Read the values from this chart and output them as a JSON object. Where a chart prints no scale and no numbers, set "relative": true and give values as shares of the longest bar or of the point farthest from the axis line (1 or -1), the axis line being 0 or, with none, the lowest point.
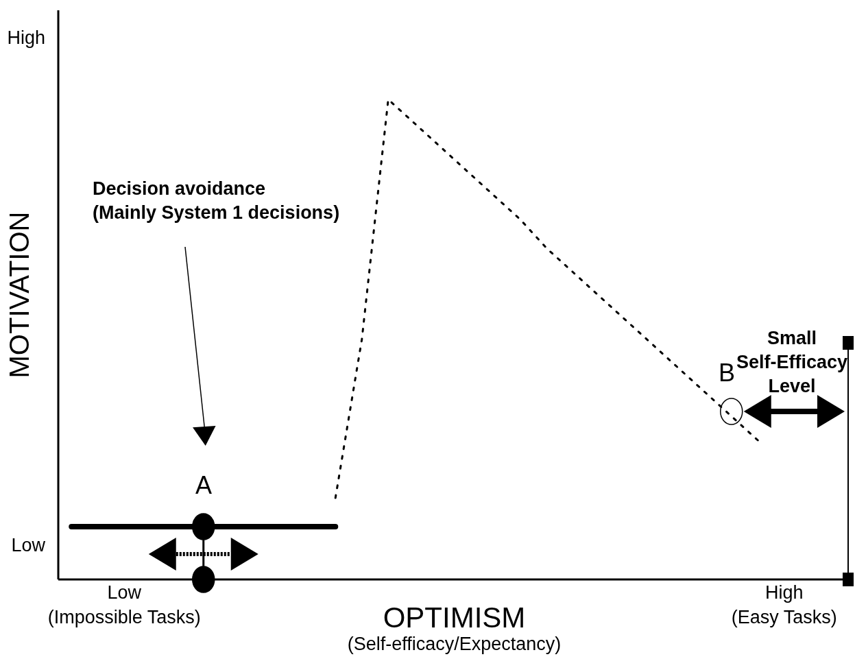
{
  "chart_data": {
    "type": "line",
    "relative": true,
    "xlabel": "OPTIMISM\n(Self-efficacy/Expectancy)",
    "ylabel": "MOTIVATION",
    "categories": [
      null,
      null,
      "Low\n(Impossible Tasks)",
      null,
      null,
      null,
      null,
      null,
      null,
      null,
      null,
      null,
      null,
      null,
      null,
      null,
      null,
      null,
      null,
      null,
      null,
      null,
      null,
      null,
      null,
      null,
      null,
      "High\n(Easy Tasks)",
      null,
      null
    ],
    "series": [
      {
        "color": "#000000",
        "line_style": "solid",
        "values": [
          0.11,
          0.11,
          0.11,
          0.11,
          0.11,
          0.11,
          0.11,
          0.11,
          0.11,
          0.11,
          0.11,
          null,
          null,
          null,
          null,
          null,
          null,
          null,
          null,
          null,
          null,
          null,
          null,
          null,
          null,
          null,
          null,
          null,
          null,
          null
        ]
      },
      {
        "color": "#000000",
        "line_style": "dotted",
        "values": [
          null,
          null,
          null,
          null,
          null,
          null,
          null,
          null,
          null,
          null,
          0.17,
          0.5,
          1,
          0.95,
          0.9,
          0.85,
          0.8,
          0.75,
          0.69,
          0.64,
          0.59,
          0.54,
          0.49,
          0.44,
          0.39,
          0.34,
          0.29,
          null,
          null,
          null
        ]
      },
      {
        "type": "scatter",
        "color": "#000000",
        "marker": "circle",
        "values": [
          null,
          null,
          null,
          null,
          null,
          0.11,
          null,
          null,
          null,
          null,
          null,
          null,
          null,
          null,
          null,
          null,
          null,
          null,
          null,
          null,
          null,
          null,
          null,
          null,
          null,
          null,
          null,
          null,
          null,
          null
        ]
      },
      {
        "type": "scatter",
        "color": "#000000",
        "marker": "circle",
        "values": [
          null,
          null,
          null,
          null,
          null,
          0,
          null,
          null,
          null,
          null,
          null,
          null,
          null,
          null,
          null,
          null,
          null,
          null,
          null,
          null,
          null,
          null,
          null,
          null,
          null,
          null,
          null,
          null,
          null,
          null
        ]
      },
      {
        "type": "scatter",
        "color": "#ffffff",
        "marker": "circle",
        "values": [
          null,
          null,
          null,
          null,
          null,
          null,
          null,
          null,
          null,
          null,
          null,
          null,
          null,
          null,
          null,
          null,
          null,
          null,
          null,
          null,
          null,
          null,
          null,
          null,
          null,
          0.35,
          null,
          null,
          null,
          null
        ]
      }
    ],
    "annotations": [
      "Decision avoidance\n(Mainly System 1 decisions)",
      "A",
      "B",
      "Small\nSelf-Efficacy\nLevel",
      "Low",
      "High"
    ]
  }
}
